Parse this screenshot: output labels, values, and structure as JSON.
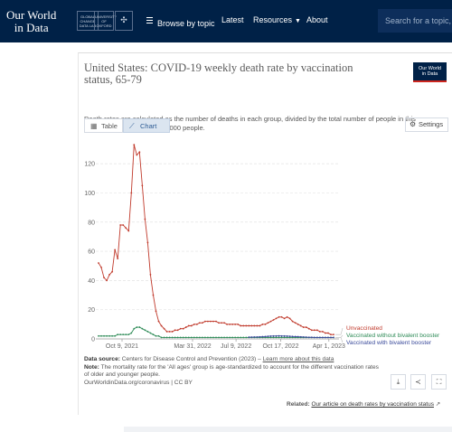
{
  "nav": {
    "logo_line1": "Our World",
    "logo_line2": "in Data",
    "partner1": "GLOBAL CHANGE DATA LAB",
    "partner2": "UNIVERSITY OF OXFORD",
    "browse_label": "Browse by topic",
    "latest_label": "Latest",
    "resources_label": "Resources",
    "about_label": "About",
    "search_placeholder": "Search for a topic, cha"
  },
  "card": {
    "title": "United States: COVID-19 weekly death rate by vaccination status, 65-79",
    "subtitle": "Death rates are calculated as the number of deaths in each group, divided by the total number of people in this group. This is given per 100,000 people.",
    "badge_line1": "Our World",
    "badge_line2": "in Data",
    "tab_table": "Table",
    "tab_chart": "Chart",
    "settings_label": "Settings",
    "source_label": "Data source:",
    "source_text": "Centers for Disease Control and Prevention (2023) –",
    "source_link": "Learn more about this data",
    "note_label": "Note:",
    "note_text": "The mortality rate for the 'All ages' group is age-standardized to account for the different vaccination rates of older and younger people.",
    "license": "OurWorldinData.org/coronavirus | CC BY",
    "related_label": "Related:",
    "related_link": "Our article on death rates by vaccination status"
  },
  "colors": {
    "nav_bg": "#002147",
    "unvaccinated": "#c0392b",
    "without_bivalent": "#2e8b57",
    "with_bivalent": "#3b4b9b"
  },
  "chart_data": {
    "type": "line",
    "x_ticks": [
      "Oct 9, 2021",
      "Mar 31, 2022",
      "Jul 9, 2022",
      "Oct 17, 2022",
      "Apr 1, 2023"
    ],
    "y_ticks": [
      "0",
      "20",
      "40",
      "60",
      "80",
      "100",
      "120"
    ],
    "ylim": [
      0,
      130
    ],
    "grid": "horizontal",
    "series": [
      {
        "name": "Unvaccinated",
        "values": [
          52,
          49,
          42,
          40,
          44,
          46,
          61,
          55,
          78,
          78,
          76,
          74,
          100,
          133,
          126,
          128,
          105,
          82,
          66,
          44,
          30,
          19,
          12,
          9,
          7,
          5,
          5,
          5,
          6,
          6,
          7,
          7,
          8,
          9,
          9,
          10,
          10,
          11,
          11,
          12,
          12,
          12,
          12,
          12,
          11,
          11,
          11,
          10,
          10,
          10,
          10,
          10,
          9,
          9,
          9,
          9,
          9,
          9,
          9,
          9,
          10,
          10,
          11,
          12,
          13,
          14,
          15,
          15,
          14,
          15,
          14,
          12,
          11,
          10,
          9,
          8,
          8,
          7,
          6,
          6,
          6,
          5,
          5,
          4,
          4,
          3,
          3
        ]
      },
      {
        "name": "Vaccinated without bivalent booster",
        "values": [
          2,
          2,
          2,
          2,
          2,
          2,
          2,
          3,
          3,
          3,
          3,
          3,
          4,
          7,
          8,
          8,
          7,
          6,
          5,
          4,
          3,
          2,
          2,
          1,
          1,
          1,
          1,
          1,
          1,
          1,
          1,
          1,
          1,
          1,
          1,
          1,
          1,
          1,
          1,
          1,
          1,
          1,
          1,
          1,
          1,
          1,
          1,
          1,
          1,
          1,
          1,
          1,
          1,
          1,
          1,
          1,
          1,
          1,
          1,
          1,
          1,
          1,
          1,
          1,
          1,
          1,
          1,
          1,
          1,
          1,
          1,
          1,
          1,
          1,
          1,
          1,
          1,
          1,
          1,
          1,
          1,
          1,
          1,
          1,
          1,
          1,
          1
        ]
      },
      {
        "name": "Vaccinated with bivalent booster",
        "values": [
          null,
          null,
          null,
          null,
          null,
          null,
          null,
          null,
          null,
          null,
          null,
          null,
          null,
          null,
          null,
          null,
          null,
          null,
          null,
          null,
          null,
          null,
          null,
          null,
          null,
          null,
          null,
          null,
          null,
          null,
          null,
          null,
          null,
          null,
          null,
          null,
          null,
          null,
          null,
          null,
          null,
          null,
          null,
          null,
          null,
          null,
          null,
          null,
          null,
          null,
          null,
          null,
          null,
          null,
          null,
          1.2,
          1.2,
          1.3,
          1.3,
          1.4,
          1.5,
          1.6,
          1.8,
          1.9,
          2,
          2,
          2.1,
          2,
          2,
          1.9,
          1.8,
          1.7,
          1.6,
          1.5,
          1.4,
          1.3,
          1.2,
          1.1,
          1.1,
          1,
          1,
          1,
          1,
          1,
          1,
          1,
          1
        ]
      }
    ]
  }
}
